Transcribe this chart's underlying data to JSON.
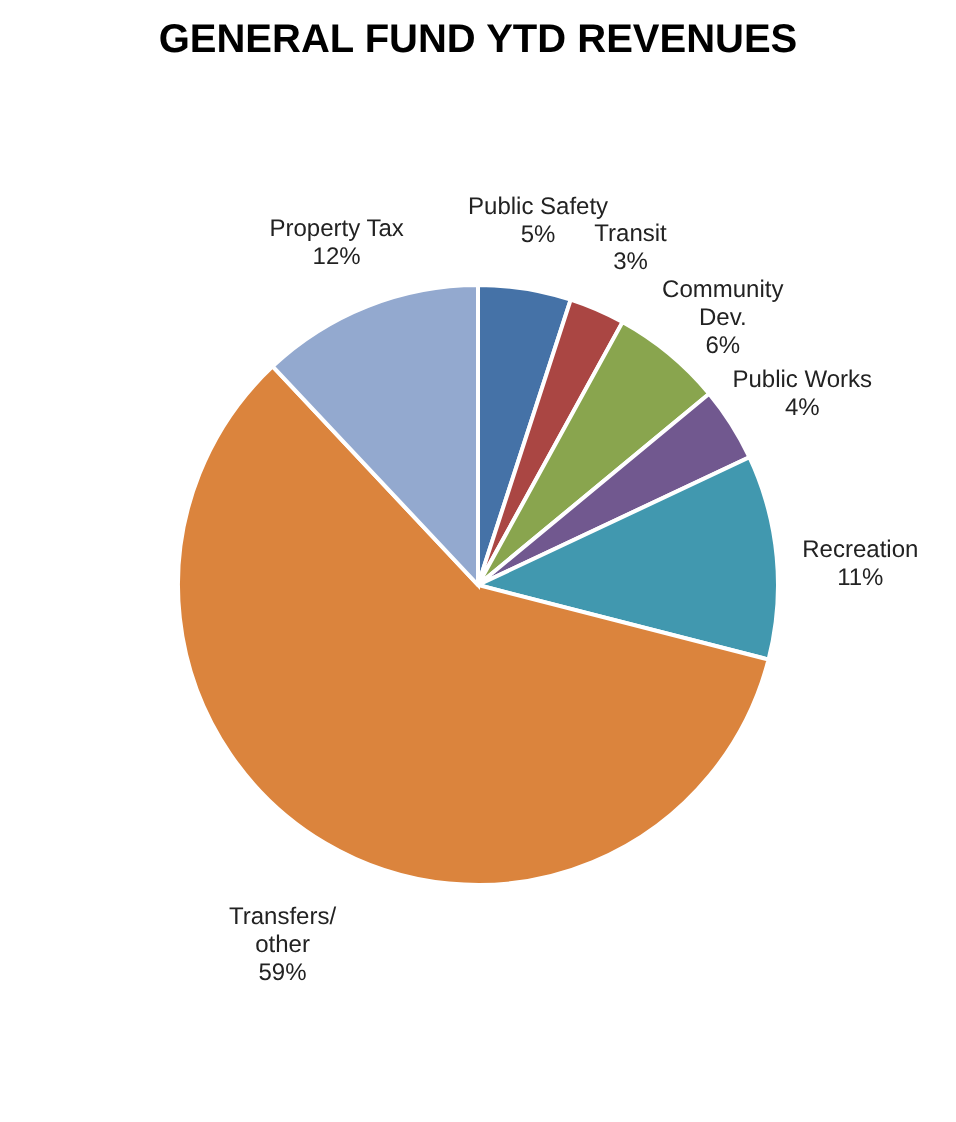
{
  "chart_data": {
    "type": "pie",
    "title": "GENERAL FUND YTD REVENUES",
    "categories": [
      "Public Safety",
      "Transit",
      "Community\nDev.",
      "Public Works",
      "Recreation",
      "Transfers/\nother",
      "Property Tax"
    ],
    "values": [
      5,
      3,
      6,
      4,
      11,
      59,
      12
    ],
    "value_labels": [
      "5%",
      "3%",
      "6%",
      "4%",
      "11%",
      "59%",
      "12%"
    ],
    "colors": [
      "#4572a7",
      "#aa4643",
      "#89a54e",
      "#71588f",
      "#4198af",
      "#db843d",
      "#93a9cf"
    ],
    "legend": false
  }
}
